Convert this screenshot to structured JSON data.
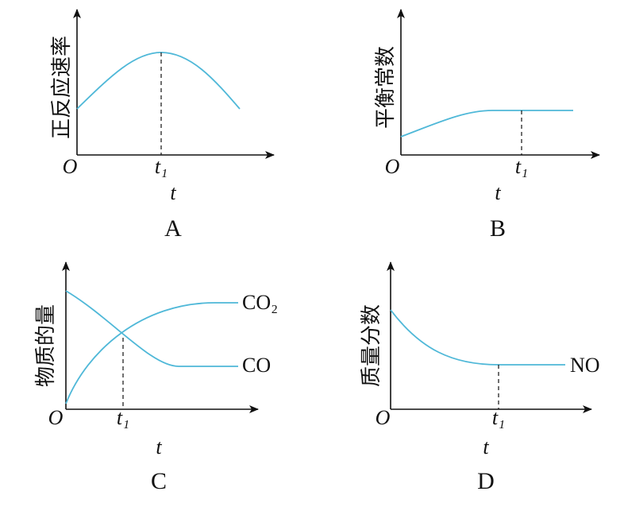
{
  "panels": [
    {
      "y_label": "正反应速率",
      "origin": "O",
      "tick": "t₁",
      "x_label": "t",
      "caption": "A"
    },
    {
      "y_label": "平衡常数",
      "origin": "O",
      "tick": "t₁",
      "x_label": "t",
      "caption": "B"
    },
    {
      "y_label": "物质的量",
      "origin": "O",
      "tick": "t₁",
      "x_label": "t",
      "caption": "C",
      "curve_labels": [
        "CO₂",
        "CO"
      ]
    },
    {
      "y_label": "质量分数",
      "origin": "O",
      "tick": "t₁",
      "x_label": "t",
      "caption": "D",
      "curve_labels": [
        "NO"
      ]
    }
  ]
}
